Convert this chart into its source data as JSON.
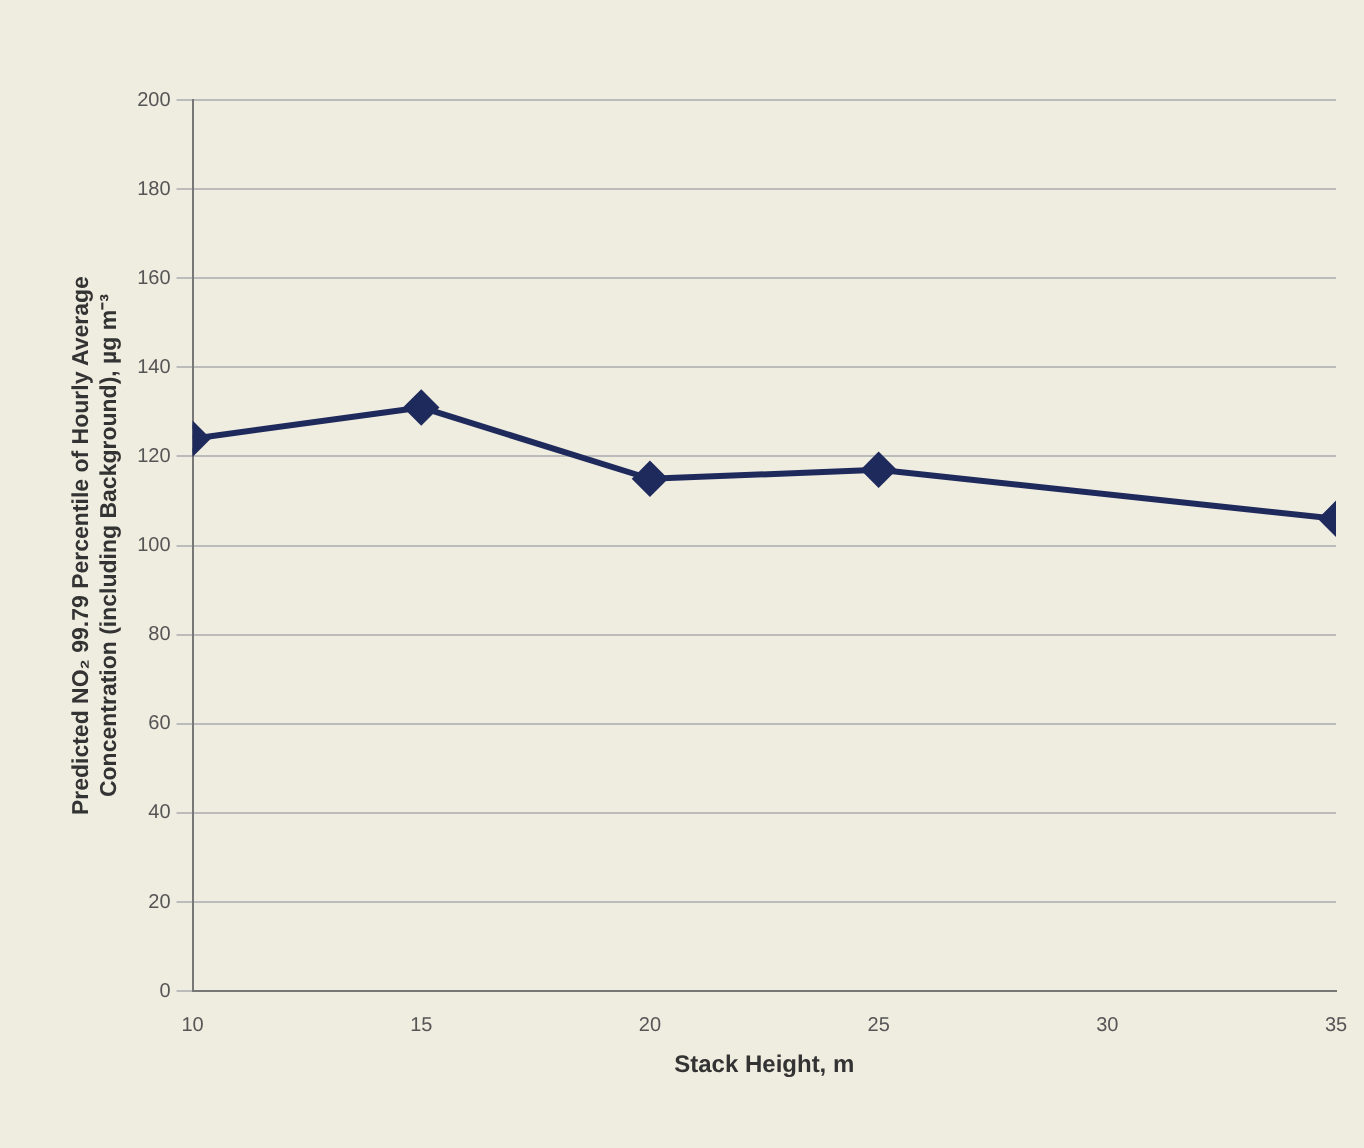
{
  "chart_data": {
    "type": "line",
    "xlabel": "Stack Height, m",
    "ylabel": "Predicted NO₂ 99.79 Percentile of Hourly Average Concentration (including Background), µg m⁻³",
    "x": [
      10,
      15,
      20,
      25,
      35
    ],
    "series": [
      {
        "color": "#1f2a5c",
        "values": [
          124,
          131,
          115,
          117,
          106
        ]
      }
    ],
    "xlim": [
      10,
      35
    ],
    "xticks": [
      10,
      15,
      20,
      25,
      30,
      35
    ],
    "ylim": [
      0,
      200
    ],
    "yticks": [
      0,
      20,
      40,
      60,
      80,
      100,
      120,
      140,
      160,
      180,
      200
    ],
    "grid": "y",
    "marker": "diamond",
    "line_style": "solid",
    "legend": false
  }
}
